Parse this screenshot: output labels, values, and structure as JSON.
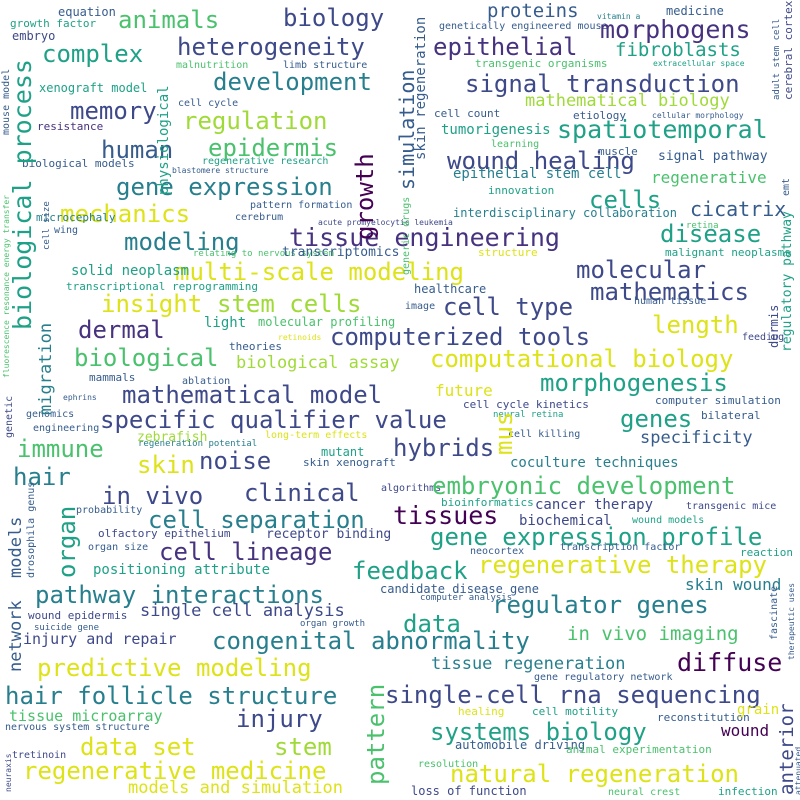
{
  "colors": {
    "purple": "#46327e",
    "navy": "#365c8d",
    "blue": "#277f8e",
    "teal": "#1fa187",
    "green": "#4ac16d",
    "lime": "#a0da39",
    "yellow": "#dde318",
    "violet": "#3e4989",
    "dark": "#440154"
  },
  "words": [
    {
      "text": "equation",
      "c": "navy"
    },
    {
      "text": "growth factor",
      "c": "teal"
    },
    {
      "text": "embryo",
      "c": "violet"
    },
    {
      "text": "animals",
      "c": "green"
    },
    {
      "text": "biology",
      "c": "violet"
    },
    {
      "text": "proteins",
      "c": "navy"
    },
    {
      "text": "genetically engineered mouse",
      "c": "navy"
    },
    {
      "text": "vitamin a",
      "c": "blue"
    },
    {
      "text": "medicine",
      "c": "navy"
    },
    {
      "text": "morphogens",
      "c": "purple"
    },
    {
      "text": "complex",
      "c": "teal"
    },
    {
      "text": "heterogeneity",
      "c": "violet"
    },
    {
      "text": "epithelial",
      "c": "purple"
    },
    {
      "text": "fibroblasts",
      "c": "teal"
    },
    {
      "text": "malnutrition",
      "c": "green"
    },
    {
      "text": "limb structure",
      "c": "navy"
    },
    {
      "text": "transgenic organisms",
      "c": "green"
    },
    {
      "text": "extracellular space",
      "c": "teal"
    },
    {
      "text": "xenograft model",
      "c": "teal"
    },
    {
      "text": "development",
      "c": "blue"
    },
    {
      "text": "signal transduction",
      "c": "violet"
    },
    {
      "text": "memory",
      "c": "violet"
    },
    {
      "text": "mathematical biology",
      "c": "lime"
    },
    {
      "text": "regulation",
      "c": "lime"
    },
    {
      "text": "cell cycle",
      "c": "navy"
    },
    {
      "text": "cell count",
      "c": "navy"
    },
    {
      "text": "etiology",
      "c": "navy"
    },
    {
      "text": "cellular morphology",
      "c": "navy"
    },
    {
      "text": "resistance",
      "c": "purple"
    },
    {
      "text": "tumorigenesis",
      "c": "teal"
    },
    {
      "text": "spatiotemporal",
      "c": "teal"
    },
    {
      "text": "human",
      "c": "navy"
    },
    {
      "text": "epidermis",
      "c": "green"
    },
    {
      "text": "biological models",
      "c": "navy"
    },
    {
      "text": "regenerative research",
      "c": "teal"
    },
    {
      "text": "learning",
      "c": "green"
    },
    {
      "text": "muscle",
      "c": "navy"
    },
    {
      "text": "wound healing",
      "c": "violet"
    },
    {
      "text": "signal pathway",
      "c": "navy"
    },
    {
      "text": "gene expression",
      "c": "blue"
    },
    {
      "text": "blastomere structure",
      "c": "navy"
    },
    {
      "text": "epithelial stem cell",
      "c": "blue"
    },
    {
      "text": "regenerative",
      "c": "green"
    },
    {
      "text": "cells",
      "c": "teal"
    },
    {
      "text": "innovation",
      "c": "teal"
    },
    {
      "text": "mechanics",
      "c": "yellow"
    },
    {
      "text": "pattern formation",
      "c": "navy"
    },
    {
      "text": "cicatrix",
      "c": "navy"
    },
    {
      "text": "cerebrum",
      "c": "navy"
    },
    {
      "text": "interdisciplinary collaboration",
      "c": "blue"
    },
    {
      "text": "retina",
      "c": "green"
    },
    {
      "text": "microcephaly",
      "c": "blue"
    },
    {
      "text": "wing",
      "c": "navy"
    },
    {
      "text": "acute promyelocytic leukemia",
      "c": "violet"
    },
    {
      "text": "modeling",
      "c": "blue"
    },
    {
      "text": "tissue engineering",
      "c": "purple"
    },
    {
      "text": "disease",
      "c": "teal"
    },
    {
      "text": "relating to nervous system",
      "c": "green"
    },
    {
      "text": "transcriptomics",
      "c": "navy"
    },
    {
      "text": "malignant neoplasms",
      "c": "teal"
    },
    {
      "text": "multi-scale modeling",
      "c": "yellow"
    },
    {
      "text": "molecular",
      "c": "violet"
    },
    {
      "text": "structure",
      "c": "yellow"
    },
    {
      "text": "solid neoplasm",
      "c": "teal"
    },
    {
      "text": "transcriptional reprogramming",
      "c": "teal"
    },
    {
      "text": "healthcare",
      "c": "navy"
    },
    {
      "text": "mathematics",
      "c": "violet"
    },
    {
      "text": "insight",
      "c": "yellow"
    },
    {
      "text": "stem cells",
      "c": "lime"
    },
    {
      "text": "cell type",
      "c": "violet"
    },
    {
      "text": "image",
      "c": "navy"
    },
    {
      "text": "human tissue",
      "c": "navy"
    },
    {
      "text": "dermal",
      "c": "purple"
    },
    {
      "text": "light",
      "c": "teal"
    },
    {
      "text": "molecular profiling",
      "c": "green"
    },
    {
      "text": "computerized tools",
      "c": "violet"
    },
    {
      "text": "length",
      "c": "yellow"
    },
    {
      "text": "retinoids",
      "c": "yellow"
    },
    {
      "text": "feeding",
      "c": "violet"
    },
    {
      "text": "theories",
      "c": "navy"
    },
    {
      "text": "biological",
      "c": "green"
    },
    {
      "text": "biological assay",
      "c": "lime"
    },
    {
      "text": "computational biology",
      "c": "yellow"
    },
    {
      "text": "mammals",
      "c": "navy"
    },
    {
      "text": "ablation",
      "c": "navy"
    },
    {
      "text": "morphogenesis",
      "c": "teal"
    },
    {
      "text": "mathematical model",
      "c": "violet"
    },
    {
      "text": "future",
      "c": "yellow"
    },
    {
      "text": "ephrins",
      "c": "navy"
    },
    {
      "text": "cell cycle kinetics",
      "c": "violet"
    },
    {
      "text": "computer simulation",
      "c": "navy"
    },
    {
      "text": "genomics",
      "c": "navy"
    },
    {
      "text": "specific qualifier value",
      "c": "violet"
    },
    {
      "text": "neural retina",
      "c": "teal"
    },
    {
      "text": "genes",
      "c": "teal"
    },
    {
      "text": "bilateral",
      "c": "navy"
    },
    {
      "text": "engineering",
      "c": "navy"
    },
    {
      "text": "immune",
      "c": "green"
    },
    {
      "text": "zebrafish",
      "c": "lime"
    },
    {
      "text": "long-term effects",
      "c": "yellow"
    },
    {
      "text": "specificity",
      "c": "navy"
    },
    {
      "text": "hybrids",
      "c": "violet"
    },
    {
      "text": "cell killing",
      "c": "navy"
    },
    {
      "text": "hair",
      "c": "blue"
    },
    {
      "text": "regeneration potential",
      "c": "blue"
    },
    {
      "text": "noise",
      "c": "violet"
    },
    {
      "text": "skin",
      "c": "yellow"
    },
    {
      "text": "mutant",
      "c": "teal"
    },
    {
      "text": "skin xenograft",
      "c": "navy"
    },
    {
      "text": "coculture techniques",
      "c": "blue"
    },
    {
      "text": "in vivo",
      "c": "violet"
    },
    {
      "text": "clinical",
      "c": "violet"
    },
    {
      "text": "algorithms",
      "c": "violet"
    },
    {
      "text": "embryonic development",
      "c": "green"
    },
    {
      "text": "bioinformatics",
      "c": "teal"
    },
    {
      "text": "cancer therapy",
      "c": "violet"
    },
    {
      "text": "cell separation",
      "c": "blue"
    },
    {
      "text": "tissues",
      "c": "dark"
    },
    {
      "text": "biochemical",
      "c": "violet"
    },
    {
      "text": "transgenic mice",
      "c": "violet"
    },
    {
      "text": "probability",
      "c": "navy"
    },
    {
      "text": "olfactory epithelium",
      "c": "violet"
    },
    {
      "text": "organ size",
      "c": "navy"
    },
    {
      "text": "receptor binding",
      "c": "violet"
    },
    {
      "text": "gene expression profile",
      "c": "teal"
    },
    {
      "text": "wound models",
      "c": "teal"
    },
    {
      "text": "cell lineage",
      "c": "purple"
    },
    {
      "text": "positioning attribute",
      "c": "teal"
    },
    {
      "text": "neocortex",
      "c": "navy"
    },
    {
      "text": "transcription factor",
      "c": "navy"
    },
    {
      "text": "reaction",
      "c": "teal"
    },
    {
      "text": "feedback",
      "c": "teal"
    },
    {
      "text": "regenerative therapy",
      "c": "yellow"
    },
    {
      "text": "skin wound",
      "c": "blue"
    },
    {
      "text": "pathway interactions",
      "c": "blue"
    },
    {
      "text": "candidate disease gene",
      "c": "navy"
    },
    {
      "text": "computer analysis",
      "c": "navy"
    },
    {
      "text": "wound epidermis",
      "c": "violet"
    },
    {
      "text": "single cell analysis",
      "c": "violet"
    },
    {
      "text": "data",
      "c": "teal"
    },
    {
      "text": "regulator genes",
      "c": "blue"
    },
    {
      "text": "organ growth",
      "c": "navy"
    },
    {
      "text": "suicide gene",
      "c": "navy"
    },
    {
      "text": "injury and repair",
      "c": "violet"
    },
    {
      "text": "congenital abnormality",
      "c": "blue"
    },
    {
      "text": "in vivo imaging",
      "c": "green"
    },
    {
      "text": "predictive modeling",
      "c": "yellow"
    },
    {
      "text": "diffuse",
      "c": "dark"
    },
    {
      "text": "tissue regeneration",
      "c": "blue"
    },
    {
      "text": "gene regulatory network",
      "c": "navy"
    },
    {
      "text": "hair follicle structure",
      "c": "blue"
    },
    {
      "text": "single-cell rna sequencing",
      "c": "violet"
    },
    {
      "text": "tissue microarray",
      "c": "green"
    },
    {
      "text": "injury",
      "c": "violet"
    },
    {
      "text": "nervous system structure",
      "c": "navy"
    },
    {
      "text": "systems biology",
      "c": "teal"
    },
    {
      "text": "healing",
      "c": "yellow"
    },
    {
      "text": "cell motility",
      "c": "teal"
    },
    {
      "text": "reconstitution",
      "c": "navy"
    },
    {
      "text": "grain",
      "c": "yellow"
    },
    {
      "text": "wound",
      "c": "dark"
    },
    {
      "text": "data set",
      "c": "yellow"
    },
    {
      "text": "stem",
      "c": "lime"
    },
    {
      "text": "automobile driving",
      "c": "navy"
    },
    {
      "text": "animal experimentation",
      "c": "green"
    },
    {
      "text": "tretinoin",
      "c": "violet"
    },
    {
      "text": "regenerative medicine",
      "c": "yellow"
    },
    {
      "text": "natural regeneration",
      "c": "yellow"
    },
    {
      "text": "resolution",
      "c": "green"
    },
    {
      "text": "models and simulation",
      "c": "yellow"
    },
    {
      "text": "loss of function",
      "c": "violet"
    },
    {
      "text": "neural crest",
      "c": "green"
    },
    {
      "text": "infection",
      "c": "teal"
    },
    {
      "text": "biological process",
      "c": "teal"
    },
    {
      "text": "mouse model",
      "c": "navy"
    },
    {
      "text": "physiological",
      "c": "teal"
    },
    {
      "text": "cell size",
      "c": "navy"
    },
    {
      "text": "fluorescence resonance energy transfer",
      "c": "green"
    },
    {
      "text": "migration",
      "c": "blue"
    },
    {
      "text": "genetic",
      "c": "violet"
    },
    {
      "text": "models",
      "c": "navy"
    },
    {
      "text": "organ",
      "c": "teal"
    },
    {
      "text": "drosophila genus",
      "c": "navy"
    },
    {
      "text": "network",
      "c": "navy"
    },
    {
      "text": "neuraxis",
      "c": "violet"
    },
    {
      "text": "simulation",
      "c": "navy"
    },
    {
      "text": "skin regeneration",
      "c": "navy"
    },
    {
      "text": "generic drugs",
      "c": "green"
    },
    {
      "text": "growth",
      "c": "dark"
    },
    {
      "text": "mus",
      "c": "yellow"
    },
    {
      "text": "pattern",
      "c": "green"
    },
    {
      "text": "adult stem cell",
      "c": "navy"
    },
    {
      "text": "cerebral cortex",
      "c": "violet"
    },
    {
      "text": "emt",
      "c": "navy"
    },
    {
      "text": "regulatory pathway",
      "c": "teal"
    },
    {
      "text": "dermis",
      "c": "violet"
    },
    {
      "text": "fascinate",
      "c": "navy"
    },
    {
      "text": "therapeutic uses",
      "c": "navy"
    },
    {
      "text": "attenuated",
      "c": "navy"
    },
    {
      "text": "anterior",
      "c": "violet"
    }
  ]
}
